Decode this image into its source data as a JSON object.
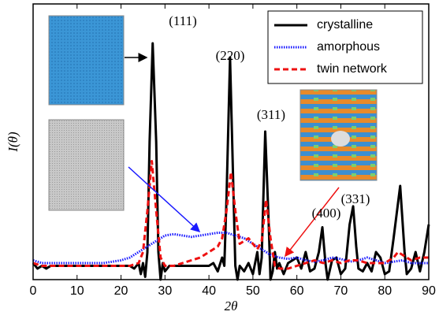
{
  "chart_data": {
    "type": "line",
    "x_label": "2θ",
    "y_label": "I(θ)",
    "xlim": [
      0,
      90
    ],
    "ylim": [
      0,
      1
    ],
    "xticks": [
      0,
      10,
      20,
      30,
      40,
      50,
      60,
      70,
      80,
      90
    ],
    "annotations": [
      "(111)",
      "(220)",
      "(311)",
      "(400)",
      "(331)"
    ],
    "legend_position": "upper right",
    "series": [
      {
        "name": "crystalline",
        "color": "#000000",
        "style": "solid",
        "x": [
          0,
          1,
          2,
          3,
          4,
          6,
          8,
          10,
          12,
          14,
          16,
          18,
          20,
          22,
          23,
          24,
          24.5,
          25,
          25.5,
          26,
          26.5,
          27.2,
          28,
          28.5,
          29,
          29.5,
          30,
          31,
          32,
          34,
          36,
          38,
          40,
          41,
          42,
          43,
          43.5,
          44,
          44.8,
          45.6,
          46,
          46.5,
          47,
          48,
          49,
          50,
          51,
          51.5,
          52,
          52.8,
          53.6,
          54,
          54.5,
          55,
          55.5,
          56,
          57,
          58,
          59,
          60,
          61,
          62,
          63,
          64,
          65,
          65.8,
          66.5,
          67,
          68,
          69,
          70,
          71,
          72,
          72.8,
          73.5,
          74,
          75,
          76,
          77,
          78,
          79,
          80,
          81,
          82,
          83.5,
          84.5,
          85,
          86,
          87,
          88,
          89,
          90
        ],
        "values": [
          0.06,
          0.04,
          0.05,
          0.04,
          0.05,
          0.05,
          0.05,
          0.05,
          0.05,
          0.05,
          0.05,
          0.05,
          0.05,
          0.05,
          0.04,
          0.06,
          0.02,
          0.06,
          0.01,
          0.1,
          0.5,
          0.857,
          0.5,
          0.1,
          0.0,
          0.06,
          0.03,
          0.05,
          0.05,
          0.05,
          0.05,
          0.05,
          0.05,
          0.06,
          0.03,
          0.08,
          0.05,
          0.3,
          0.806,
          0.3,
          0.05,
          0.0,
          0.05,
          0.03,
          0.06,
          0.02,
          0.1,
          0.02,
          0.08,
          0.537,
          0.2,
          0.0,
          0.03,
          0.1,
          0.04,
          0.06,
          0.02,
          0.06,
          0.07,
          0.08,
          0.04,
          0.1,
          0.03,
          0.04,
          0.1,
          0.19,
          0.06,
          0.0,
          0.07,
          0.08,
          0.02,
          0.04,
          0.2,
          0.266,
          0.12,
          0.04,
          0.03,
          0.06,
          0.03,
          0.1,
          0.08,
          0.02,
          0.03,
          0.15,
          0.34,
          0.1,
          0.02,
          0.04,
          0.1,
          0.03,
          0.1,
          0.2
        ]
      },
      {
        "name": "amorphous",
        "color": "#1a1aff",
        "style": "dotted",
        "x": [
          0,
          2,
          4,
          6,
          8,
          10,
          12,
          14,
          16,
          18,
          20,
          22,
          24,
          26,
          28,
          30,
          32,
          34,
          36,
          38,
          40,
          42,
          44,
          46,
          48,
          50,
          52,
          54,
          56,
          58,
          60,
          62,
          64,
          66,
          68,
          70,
          72,
          74,
          76,
          78,
          80,
          82,
          84,
          86,
          88,
          90
        ],
        "values": [
          0.07,
          0.06,
          0.06,
          0.06,
          0.06,
          0.06,
          0.06,
          0.06,
          0.06,
          0.065,
          0.07,
          0.08,
          0.1,
          0.12,
          0.14,
          0.16,
          0.165,
          0.16,
          0.155,
          0.16,
          0.165,
          0.17,
          0.17,
          0.16,
          0.15,
          0.13,
          0.11,
          0.09,
          0.08,
          0.075,
          0.08,
          0.07,
          0.065,
          0.07,
          0.08,
          0.075,
          0.065,
          0.07,
          0.08,
          0.07,
          0.06,
          0.065,
          0.07,
          0.06,
          0.06,
          0.06
        ]
      },
      {
        "name": "twin network",
        "color": "#ee1111",
        "style": "dashed",
        "x": [
          0,
          2,
          4,
          6,
          8,
          10,
          12,
          14,
          16,
          18,
          20,
          22,
          24,
          25,
          26,
          27,
          28,
          29,
          30,
          32,
          34,
          36,
          38,
          40,
          42,
          43,
          44,
          45,
          46,
          47,
          48,
          49,
          50,
          51,
          52,
          53,
          54,
          55,
          56,
          58,
          60,
          62,
          64,
          66,
          68,
          70,
          72,
          74,
          76,
          78,
          80,
          82,
          83,
          84,
          86,
          88,
          90
        ],
        "values": [
          0.06,
          0.05,
          0.05,
          0.05,
          0.05,
          0.05,
          0.05,
          0.05,
          0.05,
          0.05,
          0.05,
          0.05,
          0.06,
          0.1,
          0.25,
          0.43,
          0.25,
          0.08,
          0.05,
          0.05,
          0.06,
          0.07,
          0.08,
          0.1,
          0.12,
          0.15,
          0.25,
          0.39,
          0.25,
          0.13,
          0.14,
          0.15,
          0.13,
          0.11,
          0.14,
          0.29,
          0.15,
          0.05,
          0.04,
          0.04,
          0.05,
          0.06,
          0.07,
          0.06,
          0.07,
          0.06,
          0.07,
          0.07,
          0.06,
          0.06,
          0.06,
          0.08,
          0.1,
          0.09,
          0.07,
          0.08,
          0.08
        ]
      }
    ]
  }
}
